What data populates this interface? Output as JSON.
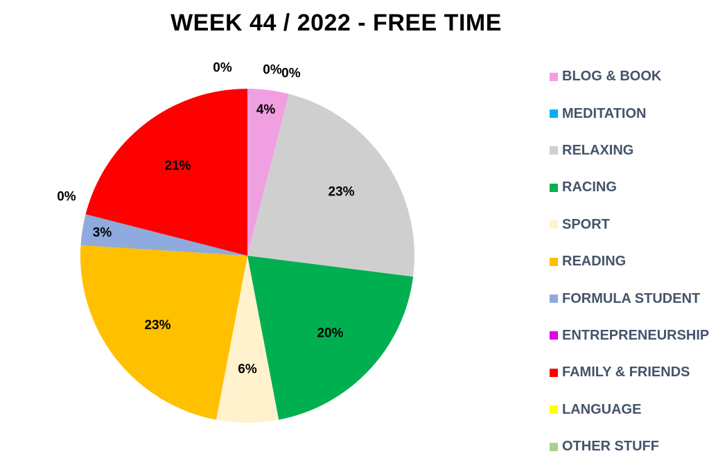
{
  "chart_data": {
    "type": "pie",
    "title": "WEEK 44 / 2022 - FREE TIME",
    "legend_position": "right",
    "slices": [
      {
        "name": "BLOG & BOOK",
        "value": 4,
        "label": "4%",
        "color": "#f0a0e0"
      },
      {
        "name": "MEDITATION",
        "value": 0,
        "label": "0%",
        "color": "#00b0f0"
      },
      {
        "name": "RELAXING",
        "value": 23,
        "label": "23%",
        "color": "#d0cfd0"
      },
      {
        "name": "RACING",
        "value": 20,
        "label": "20%",
        "color": "#00b050"
      },
      {
        "name": "SPORT",
        "value": 6,
        "label": "6%",
        "color": "#fff2cc"
      },
      {
        "name": "READING",
        "value": 23,
        "label": "23%",
        "color": "#ffc000"
      },
      {
        "name": "FORMULA STUDENT",
        "value": 3,
        "label": "3%",
        "color": "#8faadc"
      },
      {
        "name": "ENTREPRENEURSHIP",
        "value": 0,
        "label": "0%",
        "color": "#e000e0"
      },
      {
        "name": "FAMILY & FRIENDS",
        "value": 21,
        "label": "21%",
        "color": "#ff0000"
      },
      {
        "name": "LANGUAGE",
        "value": 0,
        "label": "0%",
        "color": "#ffff00"
      },
      {
        "name": "OTHER STUFF",
        "value": 0,
        "label": "0%",
        "color": "#a9d18e"
      }
    ]
  }
}
